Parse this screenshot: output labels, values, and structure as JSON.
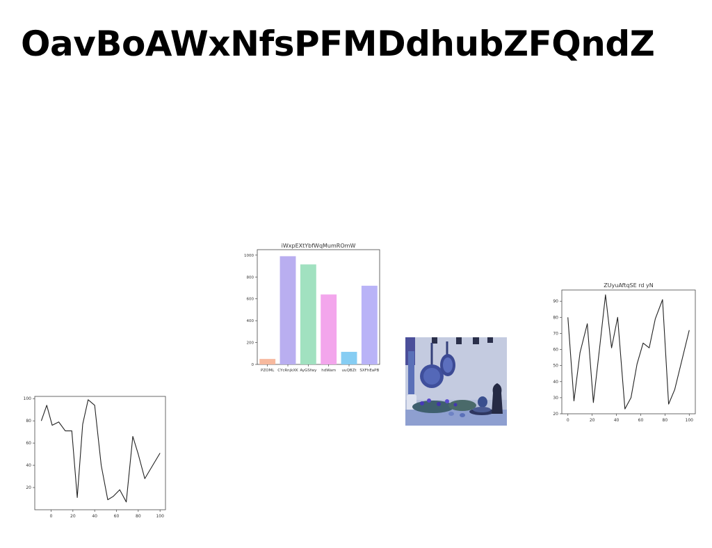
{
  "page": {
    "title": "OavBoAWxNfsPFMDdhubZFQndZ"
  },
  "charts": [
    {
      "id": "bar",
      "chart_data": {
        "type": "bar",
        "title": "iWxpEXtYbfWqMumROmW",
        "categories": [
          "PZOML",
          "CYcRnjkXK",
          "AyGSfwy",
          "hdWam",
          "uuQBZt",
          "SXFhEaPB"
        ],
        "values": [
          50,
          990,
          915,
          640,
          115,
          720
        ],
        "colors": [
          "#f7b99e",
          "#b9aef0",
          "#a1e1c0",
          "#f3a6ec",
          "#86cdf3",
          "#b9b3f7"
        ],
        "xlabel": "",
        "ylabel": "",
        "ylim": [
          0,
          1050
        ],
        "yticks": [
          0,
          200,
          400,
          600,
          800,
          1000
        ],
        "grid": false
      }
    },
    {
      "id": "line-right",
      "chart_data": {
        "type": "line",
        "title": "ZUyuAftqSE rd yN",
        "x": [
          0,
          5,
          10,
          16,
          21,
          26,
          31,
          36,
          41,
          47,
          52,
          57,
          62,
          67,
          72,
          78,
          83,
          88,
          100
        ],
        "series": [
          {
            "values": [
              80,
              28,
              58,
              76,
              27,
              60,
              94,
              61,
              80,
              23,
              30,
              51,
              64,
              61,
              79,
              91,
              26,
              35,
              72
            ],
            "color": "#222222"
          }
        ],
        "xlabel": "",
        "ylabel": "",
        "xlim": [
          -5,
          105
        ],
        "ylim": [
          20,
          97
        ],
        "xticks": [
          0,
          20,
          40,
          60,
          80,
          100
        ],
        "yticks": [
          20,
          30,
          40,
          50,
          60,
          70,
          80,
          90
        ],
        "grid": false
      }
    },
    {
      "id": "line-left",
      "chart_data": {
        "type": "line",
        "title": "",
        "x": [
          -9,
          -4,
          1,
          7,
          13,
          19,
          24,
          29,
          34,
          40,
          46,
          52,
          57,
          63,
          69,
          75,
          80,
          86,
          100
        ],
        "series": [
          {
            "values": [
              80,
              94,
              76,
              79,
              71,
              71,
              11,
              77,
              99,
              94,
              40,
              9,
              12,
              18,
              7,
              66,
              50,
              28,
              51
            ],
            "color": "#222222"
          }
        ],
        "xlabel": "",
        "ylabel": "",
        "xlim": [
          -15,
          105
        ],
        "ylim": [
          0,
          102
        ],
        "xticks": [
          0,
          20,
          40,
          60,
          80,
          100
        ],
        "yticks": [
          20,
          40,
          60,
          80,
          100
        ],
        "grid": false
      }
    }
  ],
  "photo": {
    "subject": "blue-toned kitchen still life with hanging pans and bowls"
  }
}
